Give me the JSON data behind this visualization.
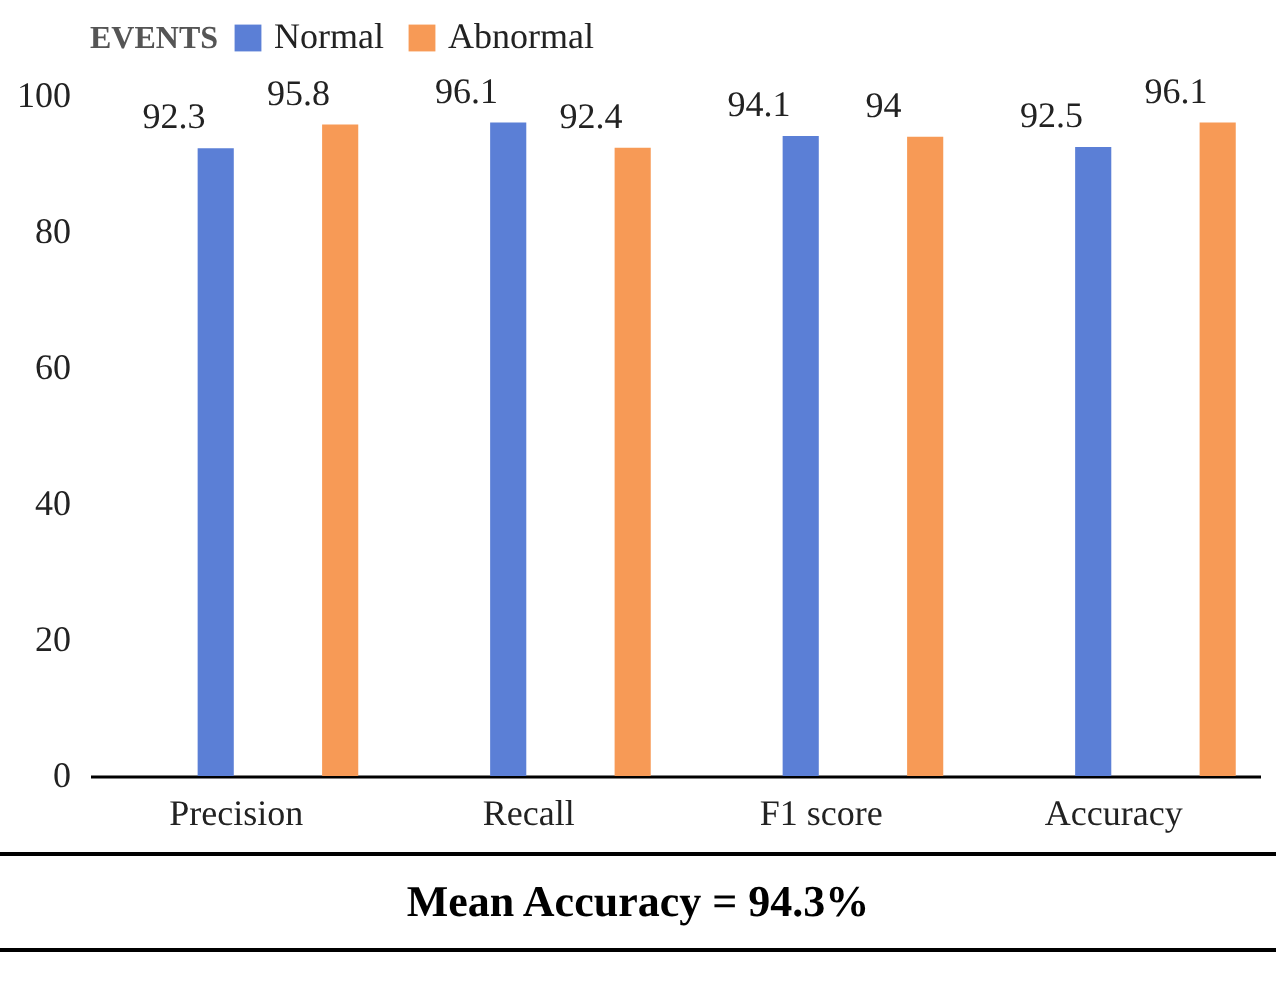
{
  "chart_data": {
    "type": "bar",
    "legend_title": "EVENTS",
    "categories": [
      "Precision",
      "Recall",
      "F1 score",
      "Accuracy"
    ],
    "series": [
      {
        "name": "Normal",
        "color": "#5b7fd6",
        "values": [
          92.3,
          96.1,
          94.1,
          92.5
        ]
      },
      {
        "name": "Abnormal",
        "color": "#f79a56",
        "values": [
          95.8,
          92.4,
          94,
          96.1
        ]
      }
    ],
    "ylim": [
      0,
      100
    ],
    "yticks": [
      0,
      20,
      40,
      60,
      80,
      100
    ],
    "grid": false,
    "legend": "top",
    "data_labels": true,
    "annotations": [
      "Mean Accuracy = 94.3%"
    ]
  }
}
